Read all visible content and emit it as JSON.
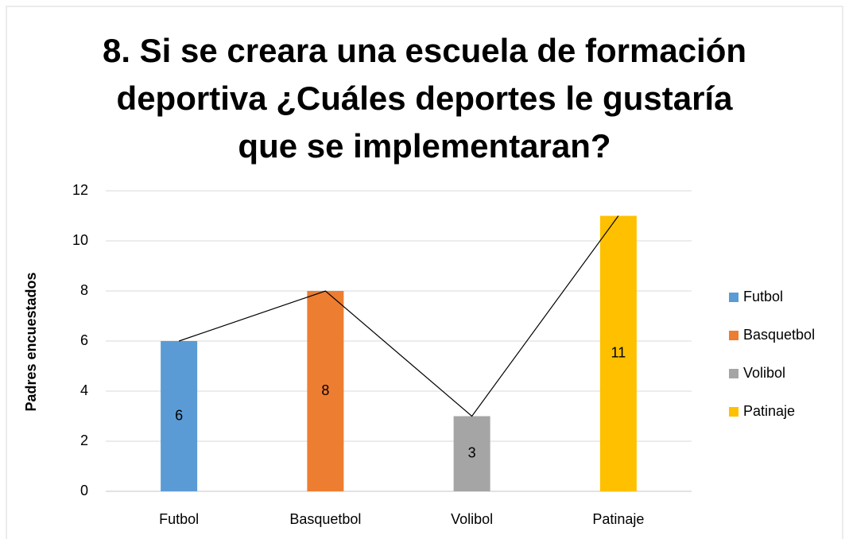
{
  "chart_data": {
    "type": "bar",
    "title": [
      "8. Si se creara una escuela de formación",
      "deportiva ¿Cuáles deportes le gustaría",
      "que se implementaran?"
    ],
    "y_label": "Padres encuestados",
    "categories": [
      "Futbol",
      "Basquetbol",
      "Volibol",
      "Patinaje"
    ],
    "values": [
      6,
      8,
      3,
      11
    ],
    "colors": [
      "#5b9bd5",
      "#ed7d31",
      "#a5a5a5",
      "#ffc000"
    ],
    "line_color": "#000000",
    "ylim": [
      0,
      12
    ],
    "yticks": [
      0,
      2,
      4,
      6,
      8,
      10,
      12
    ],
    "grid": true,
    "legend": "right"
  }
}
